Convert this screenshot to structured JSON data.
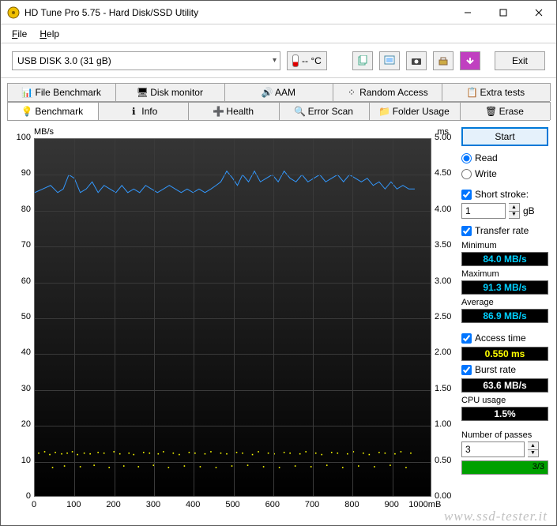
{
  "window": {
    "title": "HD Tune Pro 5.75 - Hard Disk/SSD Utility"
  },
  "menubar": {
    "file": "File",
    "help": "Help"
  },
  "toolbar": {
    "disk": "USB DISK 3.0 (31 gB)",
    "temp": "-- °C",
    "exit": "Exit"
  },
  "tabs_top": [
    {
      "label": "File Benchmark"
    },
    {
      "label": "Disk monitor"
    },
    {
      "label": "AAM"
    },
    {
      "label": "Random Access"
    },
    {
      "label": "Extra tests"
    }
  ],
  "tabs_bottom": [
    {
      "label": "Benchmark",
      "active": true
    },
    {
      "label": "Info"
    },
    {
      "label": "Health"
    },
    {
      "label": "Error Scan"
    },
    {
      "label": "Folder Usage"
    },
    {
      "label": "Erase"
    }
  ],
  "chart": {
    "ylabel_left": "MB/s",
    "ylabel_right": "ms",
    "yaxis_left": {
      "min": 0,
      "max": 100,
      "step": 10
    },
    "yaxis_right": {
      "min": 0,
      "max": 5.0,
      "step": 0.5
    },
    "xaxis": {
      "min": 0,
      "max": 1000,
      "step": 100,
      "unit": "mB"
    },
    "transfer_line": {
      "color": "#3399ff",
      "data": [
        [
          0,
          85
        ],
        [
          20,
          86
        ],
        [
          40,
          87
        ],
        [
          58,
          85
        ],
        [
          72,
          86
        ],
        [
          86,
          90
        ],
        [
          100,
          89
        ],
        [
          115,
          85
        ],
        [
          130,
          86
        ],
        [
          145,
          88
        ],
        [
          160,
          85
        ],
        [
          175,
          87
        ],
        [
          190,
          86
        ],
        [
          205,
          85
        ],
        [
          220,
          87
        ],
        [
          235,
          85
        ],
        [
          250,
          86
        ],
        [
          265,
          85
        ],
        [
          280,
          87
        ],
        [
          295,
          86
        ],
        [
          310,
          85
        ],
        [
          325,
          86
        ],
        [
          340,
          87
        ],
        [
          355,
          86
        ],
        [
          370,
          85
        ],
        [
          385,
          86
        ],
        [
          400,
          85
        ],
        [
          415,
          86
        ],
        [
          430,
          85
        ],
        [
          445,
          86
        ],
        [
          458,
          87
        ],
        [
          470,
          88
        ],
        [
          485,
          91
        ],
        [
          500,
          89
        ],
        [
          512,
          87
        ],
        [
          525,
          90
        ],
        [
          540,
          88
        ],
        [
          555,
          91
        ],
        [
          570,
          88
        ],
        [
          585,
          89
        ],
        [
          600,
          90
        ],
        [
          615,
          88
        ],
        [
          630,
          91
        ],
        [
          645,
          89
        ],
        [
          660,
          88
        ],
        [
          675,
          90
        ],
        [
          690,
          88
        ],
        [
          705,
          89
        ],
        [
          720,
          90
        ],
        [
          735,
          88
        ],
        [
          750,
          89
        ],
        [
          765,
          90
        ],
        [
          780,
          88
        ],
        [
          795,
          90
        ],
        [
          810,
          89
        ],
        [
          825,
          88
        ],
        [
          840,
          89
        ],
        [
          855,
          87
        ],
        [
          870,
          88
        ],
        [
          885,
          86
        ],
        [
          900,
          88
        ],
        [
          915,
          86
        ],
        [
          930,
          87
        ],
        [
          945,
          86
        ],
        [
          960,
          86
        ]
      ]
    },
    "access_points": {
      "color": "#ffff00",
      "data": [
        [
          10,
          0.6
        ],
        [
          25,
          0.62
        ],
        [
          38,
          0.58
        ],
        [
          45,
          0.4
        ],
        [
          52,
          0.61
        ],
        [
          68,
          0.59
        ],
        [
          75,
          0.42
        ],
        [
          82,
          0.6
        ],
        [
          95,
          0.62
        ],
        [
          108,
          0.58
        ],
        [
          115,
          0.41
        ],
        [
          125,
          0.6
        ],
        [
          140,
          0.59
        ],
        [
          150,
          0.43
        ],
        [
          160,
          0.61
        ],
        [
          175,
          0.6
        ],
        [
          188,
          0.4
        ],
        [
          200,
          0.62
        ],
        [
          215,
          0.59
        ],
        [
          225,
          0.42
        ],
        [
          238,
          0.6
        ],
        [
          250,
          0.58
        ],
        [
          262,
          0.41
        ],
        [
          275,
          0.61
        ],
        [
          290,
          0.6
        ],
        [
          300,
          0.43
        ],
        [
          312,
          0.59
        ],
        [
          325,
          0.62
        ],
        [
          338,
          0.4
        ],
        [
          350,
          0.6
        ],
        [
          365,
          0.58
        ],
        [
          378,
          0.42
        ],
        [
          390,
          0.61
        ],
        [
          405,
          0.6
        ],
        [
          418,
          0.41
        ],
        [
          430,
          0.59
        ],
        [
          445,
          0.62
        ],
        [
          458,
          0.4
        ],
        [
          470,
          0.6
        ],
        [
          485,
          0.59
        ],
        [
          498,
          0.42
        ],
        [
          510,
          0.61
        ],
        [
          525,
          0.6
        ],
        [
          538,
          0.43
        ],
        [
          550,
          0.58
        ],
        [
          565,
          0.62
        ],
        [
          578,
          0.41
        ],
        [
          590,
          0.6
        ],
        [
          605,
          0.59
        ],
        [
          618,
          0.4
        ],
        [
          630,
          0.61
        ],
        [
          645,
          0.6
        ],
        [
          658,
          0.42
        ],
        [
          670,
          0.59
        ],
        [
          685,
          0.62
        ],
        [
          698,
          0.41
        ],
        [
          710,
          0.6
        ],
        [
          725,
          0.58
        ],
        [
          738,
          0.43
        ],
        [
          750,
          0.61
        ],
        [
          765,
          0.6
        ],
        [
          778,
          0.4
        ],
        [
          790,
          0.59
        ],
        [
          805,
          0.62
        ],
        [
          818,
          0.42
        ],
        [
          830,
          0.6
        ],
        [
          845,
          0.58
        ],
        [
          858,
          0.41
        ],
        [
          870,
          0.61
        ],
        [
          885,
          0.6
        ],
        [
          898,
          0.43
        ],
        [
          910,
          0.59
        ],
        [
          925,
          0.62
        ],
        [
          938,
          0.4
        ],
        [
          950,
          0.6
        ]
      ]
    }
  },
  "side": {
    "start": "Start",
    "read": "Read",
    "write": "Write",
    "short_stroke": "Short stroke:",
    "short_stroke_val": "1",
    "short_stroke_unit": "gB",
    "transfer_rate": "Transfer rate",
    "minimum_label": "Minimum",
    "minimum": "84.0 MB/s",
    "maximum_label": "Maximum",
    "maximum": "91.3 MB/s",
    "average_label": "Average",
    "average": "86.9 MB/s",
    "access_time_label": "Access time",
    "access_time": "0.550 ms",
    "burst_rate_label": "Burst rate",
    "burst_rate": "63.6 MB/s",
    "cpu_usage_label": "CPU usage",
    "cpu_usage": "1.5%",
    "passes_label": "Number of passes",
    "passes_val": "3",
    "progress_text": "3/3",
    "progress_pct": 100
  },
  "watermark": "www.ssd-tester.it"
}
